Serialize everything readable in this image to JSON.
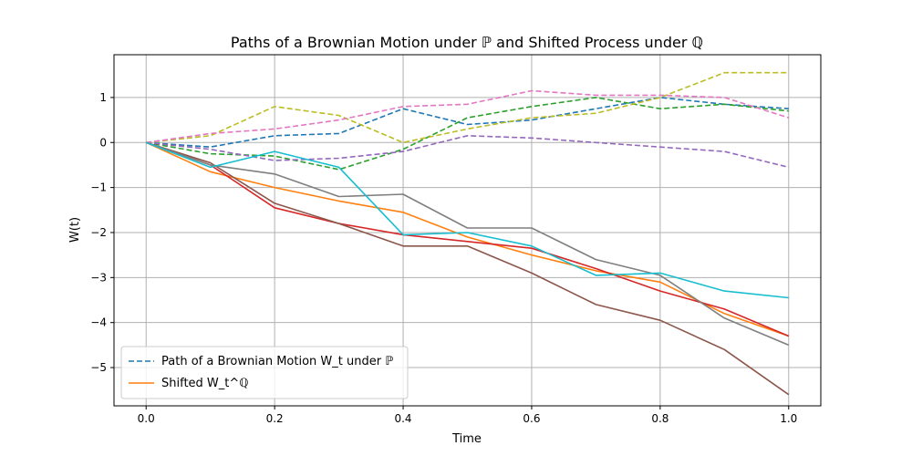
{
  "chart_data": {
    "type": "line",
    "title": "Paths of a Brownian Motion under ℙ and Shifted Process under ℚ",
    "xlabel": "Time",
    "ylabel": "W(t)",
    "xlim": [
      -0.05,
      1.05
    ],
    "ylim": [
      -5.85,
      1.95
    ],
    "xticks": [
      0.0,
      0.2,
      0.4,
      0.6,
      0.8,
      1.0
    ],
    "xtick_labels": [
      "0.0",
      "0.2",
      "0.4",
      "0.6",
      "0.8",
      "1.0"
    ],
    "yticks": [
      1,
      0,
      -1,
      -2,
      -3,
      -4,
      -5
    ],
    "ytick_labels": [
      "1",
      "0",
      "−1",
      "−2",
      "−3",
      "−4",
      "−5"
    ],
    "grid": true,
    "legend_position": "lower-left",
    "legend": [
      {
        "label": "Path of a Brownian Motion W_t under ℙ",
        "style": "dashed",
        "color": "#1f77b4"
      },
      {
        "label": "Shifted W_t^ℚ",
        "style": "solid",
        "color": "#ff7f0e"
      }
    ],
    "series": [
      {
        "style": "dashed",
        "color": "#1f77b4",
        "x": [
          0,
          0.1,
          0.2,
          0.3,
          0.4,
          0.5,
          0.6,
          0.7,
          0.8,
          0.9,
          1.0
        ],
        "y": [
          0,
          -0.1,
          0.15,
          0.2,
          0.75,
          0.4,
          0.5,
          0.75,
          1.0,
          0.85,
          0.75
        ]
      },
      {
        "style": "dashed",
        "color": "#2ca02c",
        "x": [
          0,
          0.1,
          0.2,
          0.3,
          0.4,
          0.5,
          0.6,
          0.7,
          0.8,
          0.9,
          1.0
        ],
        "y": [
          0,
          -0.25,
          -0.3,
          -0.6,
          -0.15,
          0.55,
          0.8,
          1.0,
          0.75,
          0.85,
          0.7
        ]
      },
      {
        "style": "dashed",
        "color": "#9467bd",
        "x": [
          0,
          0.1,
          0.2,
          0.3,
          0.4,
          0.5,
          0.6,
          0.7,
          0.8,
          0.9,
          1.0
        ],
        "y": [
          0,
          -0.15,
          -0.4,
          -0.35,
          -0.2,
          0.15,
          0.1,
          0.0,
          -0.1,
          -0.2,
          -0.55
        ]
      },
      {
        "style": "dashed",
        "color": "#bcbd22",
        "x": [
          0,
          0.1,
          0.2,
          0.3,
          0.4,
          0.5,
          0.6,
          0.7,
          0.8,
          0.9,
          1.0
        ],
        "y": [
          0,
          0.15,
          0.8,
          0.6,
          0.0,
          0.3,
          0.55,
          0.65,
          1.0,
          1.55,
          1.55
        ]
      },
      {
        "style": "dashed",
        "color": "#e377c2",
        "x": [
          0,
          0.1,
          0.2,
          0.3,
          0.4,
          0.5,
          0.6,
          0.7,
          0.8,
          0.9,
          1.0
        ],
        "y": [
          0,
          0.2,
          0.3,
          0.5,
          0.8,
          0.85,
          1.15,
          1.05,
          1.05,
          1.0,
          0.55
        ]
      },
      {
        "style": "solid",
        "color": "#ff7f0e",
        "x": [
          0,
          0.1,
          0.2,
          0.3,
          0.4,
          0.5,
          0.6,
          0.7,
          0.8,
          0.9,
          1.0
        ],
        "y": [
          0,
          -0.65,
          -1.0,
          -1.3,
          -1.55,
          -2.1,
          -2.5,
          -2.85,
          -3.1,
          -3.8,
          -4.3
        ]
      },
      {
        "style": "solid",
        "color": "#d62728",
        "x": [
          0,
          0.1,
          0.2,
          0.3,
          0.4,
          0.5,
          0.6,
          0.7,
          0.8,
          0.9,
          1.0
        ],
        "y": [
          0,
          -0.5,
          -1.45,
          -1.8,
          -2.05,
          -2.2,
          -2.35,
          -2.8,
          -3.3,
          -3.7,
          -4.3
        ]
      },
      {
        "style": "solid",
        "color": "#8c564b",
        "x": [
          0,
          0.1,
          0.2,
          0.3,
          0.4,
          0.5,
          0.6,
          0.7,
          0.8,
          0.9,
          1.0
        ],
        "y": [
          0,
          -0.45,
          -1.35,
          -1.8,
          -2.3,
          -2.3,
          -2.9,
          -3.6,
          -3.95,
          -4.6,
          -5.6
        ]
      },
      {
        "style": "solid",
        "color": "#7f7f7f",
        "x": [
          0,
          0.1,
          0.2,
          0.3,
          0.4,
          0.5,
          0.6,
          0.7,
          0.8,
          0.9,
          1.0
        ],
        "y": [
          0,
          -0.5,
          -0.7,
          -1.2,
          -1.15,
          -1.9,
          -1.9,
          -2.6,
          -2.95,
          -3.9,
          -4.5
        ]
      },
      {
        "style": "solid",
        "color": "#17becf",
        "x": [
          0,
          0.1,
          0.2,
          0.3,
          0.4,
          0.5,
          0.6,
          0.7,
          0.8,
          0.9,
          1.0
        ],
        "y": [
          0,
          -0.55,
          -0.2,
          -0.55,
          -2.05,
          -2.0,
          -2.3,
          -2.95,
          -2.9,
          -3.3,
          -3.45
        ]
      }
    ]
  }
}
